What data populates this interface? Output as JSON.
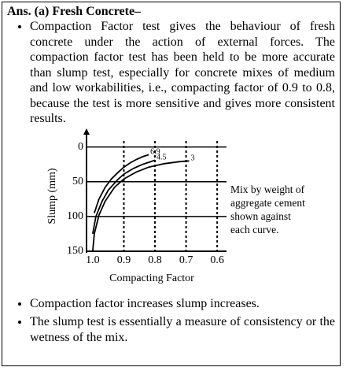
{
  "header": {
    "title": "Ans. (a) Fresh Concrete–"
  },
  "bullets_before": [
    "Compaction Factor test gives the behaviour of fresh concrete under the action of external forces. The compaction factor test has been held to be more accurate than slump test, especially for concrete mixes of medium and low workabilities, i.e., compacting factor of 0.9 to 0.8, because the test is more sensitive and gives more consistent results."
  ],
  "figure": {
    "chart_data": {
      "type": "line",
      "x_label": "Compacting Factor",
      "y_label": "Slump (mm)",
      "annotation": "Mix by weight of aggregate cement shown against each curve.",
      "xlim": [
        1.02,
        0.57
      ],
      "ylim": [
        150,
        -20
      ],
      "xticks": [
        {
          "value": 1,
          "label": "1.0"
        },
        0.9,
        0.8,
        0.7,
        0.6
      ],
      "yticks": [
        0,
        50,
        100,
        150
      ],
      "grid": true,
      "series": [
        {
          "name": "6.9",
          "color": "#000000",
          "x": [
            0.995,
            0.98,
            0.96,
            0.94,
            0.92,
            0.9,
            0.88,
            0.86,
            0.84,
            0.82
          ],
          "values": [
            95,
            75,
            58,
            46,
            37,
            29,
            23,
            18,
            14,
            11
          ]
        },
        {
          "name": "4.5",
          "color": "#000000",
          "x": [
            1.0,
            0.99,
            0.97,
            0.95,
            0.92,
            0.9,
            0.87,
            0.84,
            0.82,
            0.8
          ],
          "values": [
            125,
            100,
            78,
            62,
            47,
            39,
            31,
            25,
            22,
            19
          ]
        },
        {
          "name": "3",
          "color": "#000000",
          "x": [
            1.0,
            0.995,
            0.98,
            0.96,
            0.93,
            0.9,
            0.86,
            0.82,
            0.77,
            0.72,
            0.69
          ],
          "values": [
            150,
            125,
            98,
            78,
            58,
            46,
            36,
            29,
            24,
            21,
            20
          ]
        }
      ]
    }
  },
  "bullets_after": [
    "Compaction factor increases slump increases.",
    "The slump test is essentially a measure of consistency or the wetness of the mix."
  ]
}
